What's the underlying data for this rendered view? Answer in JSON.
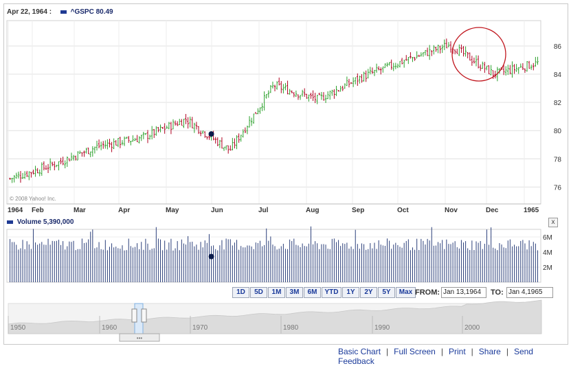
{
  "header": {
    "date": "Apr 22, 1964 :",
    "symbol_text": "^GSPC 80.49",
    "series_color": "#1f3a93"
  },
  "copyright": "© 2008 Yahoo! Inc.",
  "volume_header": {
    "text": "Volume 5,390,000",
    "close_label": "x"
  },
  "range_buttons": [
    "1D",
    "5D",
    "1M",
    "3M",
    "6M",
    "YTD",
    "1Y",
    "2Y",
    "5Y",
    "Max"
  ],
  "range_picker": {
    "from_label": "FROM:",
    "from_value": "Jan 13,1964",
    "to_label": "TO:",
    "to_value": "Jan 4,1965"
  },
  "footer_links": [
    "Basic Chart",
    "Full Screen",
    "Print",
    "Share",
    "Send Feedback"
  ],
  "colors": {
    "up": "#2ca02c",
    "down": "#b00020",
    "volume": "#2b3f7a",
    "grid": "#e0e0e0",
    "circle": "#c0141c"
  },
  "chart_data": {
    "type": "candlestick",
    "symbol": "^GSPC",
    "x_tick_labels": [
      "1964",
      "Feb",
      "Mar",
      "Apr",
      "May",
      "Jun",
      "Jul",
      "Aug",
      "Sep",
      "Oct",
      "Nov",
      "Dec",
      "1965"
    ],
    "y_ticks": [
      76,
      78,
      80,
      82,
      84,
      86
    ],
    "ylim": [
      74.8,
      87.8
    ],
    "grid": true,
    "price_path_months": [
      {
        "month": "Jan",
        "close": 76.6
      },
      {
        "month": "Feb",
        "close": 77.6
      },
      {
        "month": "Mar",
        "close": 78.9
      },
      {
        "month": "Apr",
        "close": 79.5
      },
      {
        "month": "May",
        "close": 80.8
      },
      {
        "month": "Jun",
        "close": 78.6
      },
      {
        "month": "Jul",
        "close": 83.2
      },
      {
        "month": "Aug",
        "close": 82.2
      },
      {
        "month": "Sep",
        "close": 83.8
      },
      {
        "month": "Oct",
        "close": 85.0
      },
      {
        "month": "Nov",
        "close": 86.1
      },
      {
        "month": "Dec",
        "close": 84.0
      },
      {
        "month": "1965",
        "close": 84.8
      }
    ],
    "highlight_marker": {
      "date": "Apr 22, 1964",
      "value": 80.49
    },
    "annotation": "red circle around November peak",
    "volume": {
      "name": "Volume",
      "y_ticks": [
        "2M",
        "4M",
        "6M"
      ],
      "ylim": [
        0,
        7
      ],
      "typical_millions": 5.0
    },
    "navigator": {
      "tick_labels": [
        "1950",
        "1960",
        "1970",
        "1980",
        "1990",
        "2000"
      ]
    }
  }
}
